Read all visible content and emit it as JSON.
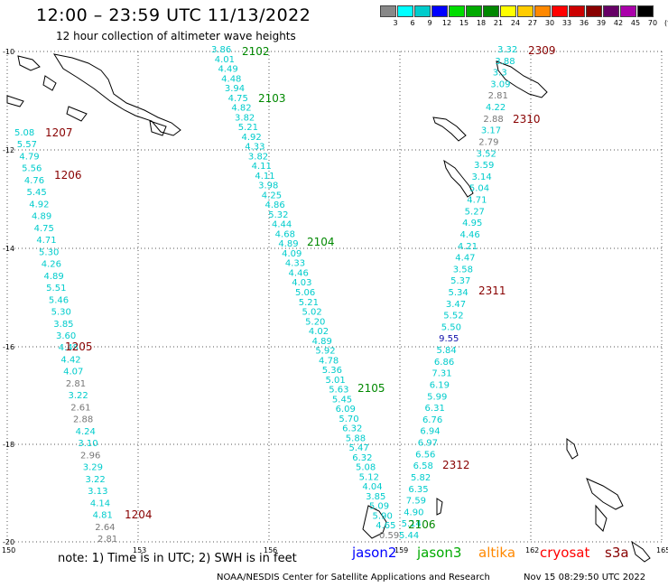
{
  "header": {
    "title": "12:00 – 23:59 UTC 11/13/2022",
    "subtitle": "12 hour collection of altimeter wave heights"
  },
  "legend": {
    "labels": [
      "3",
      "6",
      "9",
      "12",
      "15",
      "18",
      "21",
      "24",
      "27",
      "30",
      "33",
      "36",
      "39",
      "42",
      "45",
      "70",
      "(ft)"
    ],
    "colors": [
      "#888888",
      "#00ffff",
      "#00cccc",
      "#0000ff",
      "#00dd00",
      "#00aa00",
      "#008800",
      "#ffff00",
      "#ffcc00",
      "#ff8800",
      "#ff0000",
      "#cc0000",
      "#880000",
      "#660066",
      "#aa00aa",
      "#000000"
    ]
  },
  "axes": {
    "x_ticks": [
      "150",
      "153",
      "156",
      "159",
      "162",
      "165"
    ],
    "y_ticks": [
      "-10",
      "-12",
      "-14",
      "-16",
      "-18",
      "-20"
    ]
  },
  "passes": [
    {
      "id": "2102",
      "color": "green"
    },
    {
      "id": "2103",
      "color": "green"
    },
    {
      "id": "2104",
      "color": "green"
    },
    {
      "id": "2105",
      "color": "green"
    },
    {
      "id": "2106",
      "color": "green"
    },
    {
      "id": "1207",
      "color": "red"
    },
    {
      "id": "1206",
      "color": "red"
    },
    {
      "id": "1205",
      "color": "red"
    },
    {
      "id": "1204",
      "color": "red"
    },
    {
      "id": "2309",
      "color": "red"
    },
    {
      "id": "2310",
      "color": "red"
    },
    {
      "id": "2311",
      "color": "red"
    },
    {
      "id": "2312",
      "color": "red"
    }
  ],
  "tracks": {
    "track_a": [
      "3.86",
      "4.01",
      "4.49",
      "4.48",
      "3.94",
      "4.75",
      "4.82",
      "3.82",
      "5.21",
      "4.92",
      "4.33",
      "3.82",
      "4.11",
      "4.11",
      "3.98",
      "4.25",
      "4.86",
      "5.32",
      "4.44",
      "4.68",
      "4.89",
      "4.09",
      "4.33",
      "4.46",
      "4.03",
      "5.06",
      "5.21",
      "5.02",
      "5.20",
      "4.02",
      "4.89",
      "5.92",
      "4.78",
      "5.36",
      "5.01",
      "5.63",
      "5.45",
      "6.09",
      "5.70",
      "6.32",
      "5.88",
      "5.47",
      "6.32",
      "5.08",
      "5.12",
      "4.04",
      "3.85",
      "5.09",
      "5.90",
      "4.65",
      "0.59"
    ],
    "track_b": [
      "5.08",
      "5.57",
      "4.79",
      "5.56",
      "4.76",
      "5.45",
      "4.92",
      "4.89",
      "4.75",
      "4.71",
      "5.30",
      "4.26",
      "4.89",
      "5.51",
      "5.46",
      "5.30",
      "3.85",
      "3.60",
      "4.48",
      "4.42",
      "4.07",
      "2.81",
      "3.22",
      "2.61",
      "2.88",
      "4.24",
      "3.10",
      "2.96",
      "3.29",
      "3.22",
      "3.13",
      "4.14",
      "4.81",
      "2.64",
      "2.81"
    ],
    "track_c": [
      "3.32",
      "3.88",
      "3.3",
      "3.09",
      "2.81",
      "4.22",
      "2.88",
      "3.17",
      "2.79",
      "3.52",
      "3.59",
      "3.14",
      "5.04",
      "4.71",
      "5.27",
      "4.95",
      "4.46",
      "4.21",
      "4.47",
      "3.58",
      "5.37",
      "5.34",
      "3.47",
      "5.52",
      "5.50",
      "9.55",
      "5.84",
      "6.86",
      "7.31",
      "6.19",
      "5.99",
      "6.31",
      "6.76",
      "6.94",
      "6.97",
      "6.56",
      "6.58",
      "5.82",
      "6.35",
      "7.59",
      "4.90",
      "5.14",
      "5.44"
    ]
  },
  "satellites": [
    {
      "name": "jason2",
      "color": "#0000ff"
    },
    {
      "name": "jason3",
      "color": "#00aa00"
    },
    {
      "name": "altika",
      "color": "#ff8800"
    },
    {
      "name": "cryosat",
      "color": "#ff0000"
    },
    {
      "name": "s3a",
      "color": "#880000"
    }
  ],
  "note": "note: 1) Time is in UTC; 2) SWH is in feet",
  "footer": "NOAA/NESDIS Center for Satellite Applications and Research",
  "timestamp": "Nov 15 08:29:50 UTC 2022"
}
